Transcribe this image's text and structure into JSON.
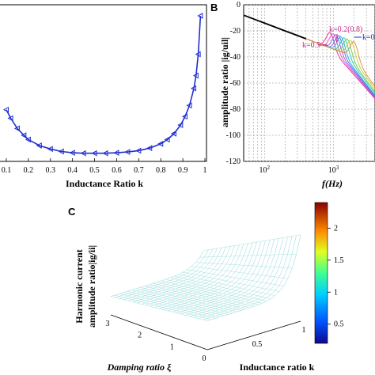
{
  "colors": {
    "series_a": "#1f2fd0",
    "annotation": "#cc2a8c",
    "axis": "#000000"
  },
  "panels": {
    "A": {
      "chart_data": {
        "type": "line",
        "xlabel": "Inductance Ratio k",
        "xlim": [
          0.1,
          1.0
        ],
        "x_ticks": [
          "0.1",
          "0.2",
          "0.3",
          "0.4",
          "0.5",
          "0.6",
          "0.7",
          "0.8",
          "0.9",
          "1"
        ],
        "series": [
          {
            "marker": "triangle",
            "x": [
              0.1,
              0.12,
              0.15,
              0.18,
              0.2,
              0.25,
              0.3,
              0.35,
              0.4,
              0.45,
              0.5,
              0.55,
              0.6,
              0.65,
              0.7,
              0.75,
              0.8,
              0.83,
              0.86,
              0.89,
              0.91,
              0.93,
              0.95,
              0.96,
              0.97,
              0.98
            ],
            "y": [
              0.7,
              0.6,
              0.48,
              0.4,
              0.35,
              0.28,
              0.24,
              0.21,
              0.195,
              0.19,
              0.19,
              0.19,
              0.195,
              0.205,
              0.22,
              0.25,
              0.3,
              0.35,
              0.42,
              0.52,
              0.62,
              0.75,
              0.95,
              1.1,
              1.35,
              1.8
            ]
          }
        ]
      }
    },
    "B": {
      "label": "B",
      "chart_data": {
        "type": "line",
        "xlabel": "f(Hz)",
        "ylabel": "amplitude ratio |ig/uil|",
        "ylim": [
          -120,
          0
        ],
        "y_ticks": [
          "0",
          "-20",
          "-40",
          "-60",
          "-80",
          "-100",
          "-120"
        ],
        "x_ticks": [
          "10^2",
          "10^3"
        ],
        "xscale": "log",
        "grid": true,
        "annotations": [
          "k=0.5",
          "k=0.2(0.8)",
          "k=0."
        ],
        "series": [
          {
            "k": 0.2,
            "resonance_hz": 900
          },
          {
            "k": 0.3,
            "resonance_hz": 1000
          },
          {
            "k": 0.4,
            "resonance_hz": 1100
          },
          {
            "k": 0.5,
            "resonance_hz": 1200
          },
          {
            "k": 0.6,
            "resonance_hz": 1300
          },
          {
            "k": 0.7,
            "resonance_hz": 1450
          },
          {
            "k": 0.8,
            "resonance_hz": 1600
          },
          {
            "k": 0.9,
            "resonance_hz": 1800
          },
          {
            "k": 0.95,
            "resonance_hz": 2000
          }
        ]
      }
    },
    "C": {
      "label": "C",
      "chart_data": {
        "type": "surface",
        "zlabel_line1": "Harmonic current",
        "zlabel_line2": "amplitude ratio|ig/ii|",
        "xlabel": "Damping ratio ξ",
        "ylabel": "Inductance ratio k",
        "xlim": [
          0,
          3
        ],
        "x_ticks": [
          "3",
          "2",
          "1",
          "0"
        ],
        "y_ticks": [
          "0.5",
          "1"
        ],
        "colorbar": {
          "range": [
            0.2,
            2.4
          ],
          "ticks": [
            "2",
            "1.5",
            "1",
            "0.5"
          ]
        }
      }
    }
  }
}
